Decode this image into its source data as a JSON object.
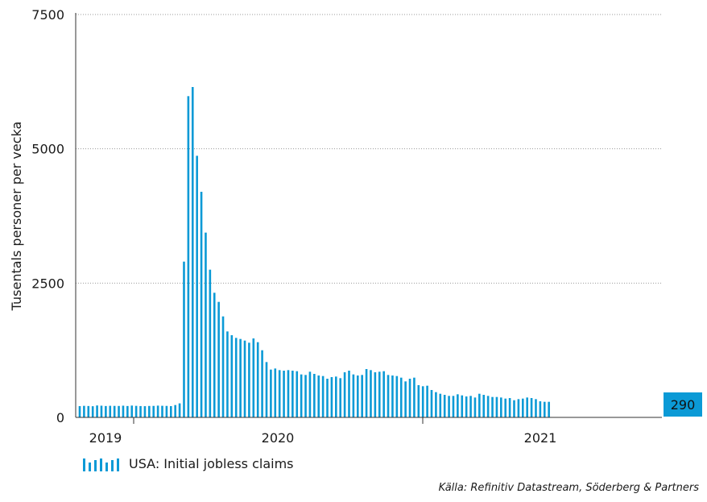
{
  "chart_data": {
    "type": "bar",
    "title": "",
    "ylabel": "Tusentals personer per vecka",
    "xlabel": "",
    "ylim": [
      0,
      7500
    ],
    "yticks": [
      0,
      2500,
      5000,
      7500
    ],
    "ytick_labels": [
      "0",
      "2500",
      "5000",
      "7500"
    ],
    "xtick_labels": [
      "2019",
      "2020",
      "2021"
    ],
    "grid": true,
    "legend_position": "bottom-left",
    "bar_color": "#0b9ad6",
    "series": [
      {
        "name": "USA: Initial jobless claims",
        "values": [
          210,
          215,
          212,
          208,
          222,
          218,
          212,
          216,
          214,
          213,
          218,
          212,
          220,
          215,
          211,
          209,
          213,
          214,
          219,
          216,
          214,
          210,
          230,
          261,
          2900,
          5980,
          6150,
          4870,
          4200,
          3440,
          2750,
          2320,
          2150,
          1880,
          1600,
          1530,
          1480,
          1460,
          1430,
          1390,
          1470,
          1400,
          1250,
          1030,
          890,
          910,
          880,
          870,
          880,
          870,
          860,
          800,
          790,
          850,
          810,
          780,
          770,
          720,
          750,
          760,
          730,
          840,
          870,
          800,
          780,
          790,
          900,
          880,
          840,
          850,
          860,
          790,
          780,
          770,
          740,
          670,
          720,
          740,
          600,
          580,
          590,
          510,
          470,
          440,
          420,
          400,
          400,
          430,
          410,
          390,
          400,
          370,
          440,
          420,
          400,
          380,
          380,
          370,
          350,
          360,
          320,
          340,
          350,
          370,
          360,
          340,
          300,
          290,
          290
        ]
      }
    ],
    "last_value_label": "290"
  },
  "legend": {
    "label": "USA: Initial jobless claims"
  },
  "source": "Källa: Refinitiv Datastream, Söderberg & Partners"
}
